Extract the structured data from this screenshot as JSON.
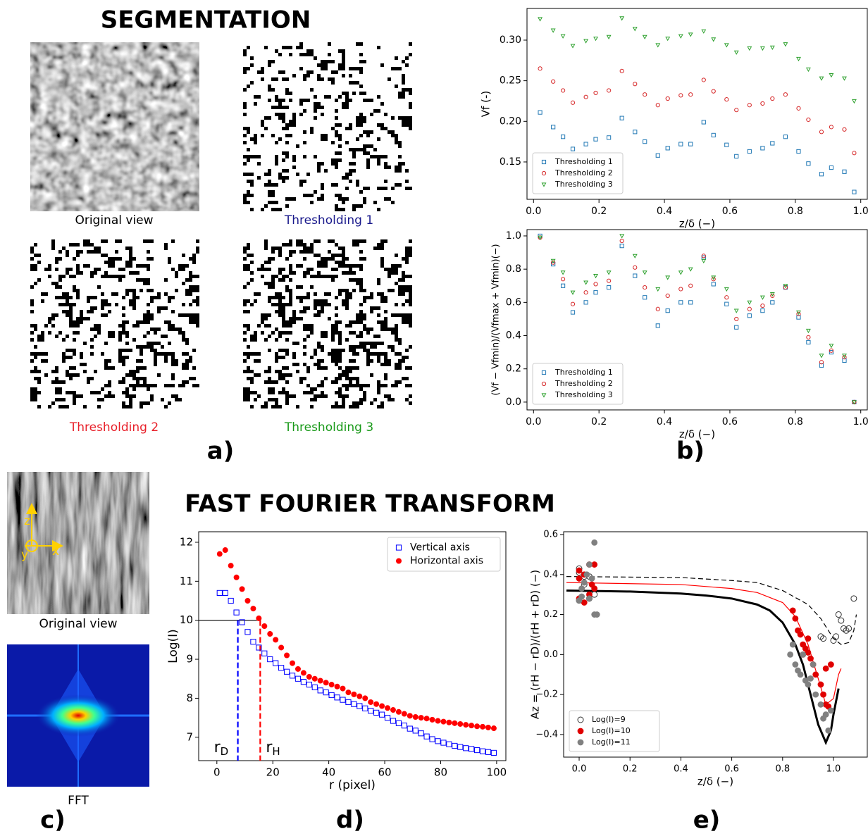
{
  "segmentation": {
    "title": "SEGMENTATION",
    "captions": [
      "Original view",
      "Thresholding 1",
      "Thresholding 2",
      "Thresholding 3"
    ],
    "caption_colors": [
      "#000000",
      "#1a1a8c",
      "#e8202a",
      "#1a9a1a"
    ],
    "panel": "a)"
  },
  "panel_b": "b)",
  "fft": {
    "title": "FAST FOURIER TRANSFORM",
    "captions": [
      "Original view",
      "FFT"
    ],
    "axes": [
      "z",
      "x",
      "y"
    ],
    "panels": [
      "c)",
      "d)",
      "e)"
    ]
  },
  "chart_data": [
    {
      "type": "scatter",
      "ylabel": "Vf (-)",
      "xlabel": "z/δ (−)",
      "xlim": [
        -0.02,
        1.02
      ],
      "ylim": [
        0.104,
        0.339
      ],
      "xticks": [
        {
          "value": 0,
          "label": "0.0"
        },
        0.2,
        0.4,
        0.6,
        0.8,
        {
          "value": 1,
          "label": "1.0"
        }
      ],
      "yticks": [
        0.15,
        {
          "value": 0.2,
          "label": "0.20"
        },
        0.25,
        {
          "value": 0.3,
          "label": "0.30"
        }
      ],
      "legend": "lower left",
      "x": [
        0.02,
        0.06,
        0.09,
        0.12,
        0.16,
        0.19,
        0.23,
        0.27,
        0.31,
        0.34,
        0.38,
        0.41,
        0.45,
        0.48,
        0.52,
        0.55,
        0.59,
        0.62,
        0.66,
        0.7,
        0.73,
        0.77,
        0.81,
        0.84,
        0.88,
        0.91,
        0.95,
        0.98
      ],
      "series": [
        {
          "name": "Thresholding 1",
          "color": "#1f77b4",
          "marker": "square",
          "filled": false,
          "values": [
            0.211,
            0.193,
            0.181,
            0.166,
            0.172,
            0.178,
            0.18,
            0.204,
            0.187,
            0.175,
            0.158,
            0.167,
            0.172,
            0.172,
            0.199,
            0.183,
            0.171,
            0.157,
            0.163,
            0.167,
            0.173,
            0.181,
            0.163,
            0.148,
            0.135,
            0.143,
            0.138,
            0.113
          ]
        },
        {
          "name": "Thresholding 2",
          "color": "#d62728",
          "marker": "circle",
          "filled": false,
          "values": [
            0.265,
            0.249,
            0.238,
            0.223,
            0.23,
            0.235,
            0.238,
            0.262,
            0.246,
            0.233,
            0.22,
            0.228,
            0.232,
            0.233,
            0.251,
            0.237,
            0.227,
            0.214,
            0.22,
            0.222,
            0.228,
            0.233,
            0.216,
            0.202,
            0.187,
            0.193,
            0.19,
            0.161
          ]
        },
        {
          "name": "Thresholding 3",
          "color": "#2ca02c",
          "marker": "triangle",
          "filled": false,
          "values": [
            0.326,
            0.312,
            0.305,
            0.293,
            0.299,
            0.302,
            0.304,
            0.327,
            0.314,
            0.304,
            0.294,
            0.302,
            0.305,
            0.307,
            0.311,
            0.301,
            0.294,
            0.285,
            0.29,
            0.29,
            0.291,
            0.295,
            0.277,
            0.264,
            0.253,
            0.257,
            0.253,
            0.225
          ]
        }
      ]
    },
    {
      "type": "scatter",
      "ylabel": "(Vf − Vfmin)/(Vfmax + Vfmin)(−)",
      "xlabel": "z/δ (−)",
      "xlim": [
        -0.02,
        1.02
      ],
      "ylim": [
        -0.047,
        1.038
      ],
      "xticks": [
        {
          "value": 0,
          "label": "0.0"
        },
        0.2,
        0.4,
        0.6,
        0.8,
        {
          "value": 1,
          "label": "1.0"
        }
      ],
      "yticks": [
        {
          "value": 0,
          "label": "0.0"
        },
        0.2,
        0.4,
        0.6,
        0.8,
        {
          "value": 1,
          "label": "1.0"
        }
      ],
      "legend": "lower left",
      "x": [
        0.02,
        0.06,
        0.09,
        0.12,
        0.16,
        0.19,
        0.23,
        0.27,
        0.31,
        0.34,
        0.38,
        0.41,
        0.45,
        0.48,
        0.52,
        0.55,
        0.59,
        0.62,
        0.66,
        0.7,
        0.73,
        0.77,
        0.81,
        0.84,
        0.88,
        0.91,
        0.95,
        0.98
      ],
      "series": [
        {
          "name": "Thresholding 1",
          "color": "#1f77b4",
          "marker": "square",
          "filled": false,
          "values": [
            1.0,
            0.83,
            0.7,
            0.54,
            0.6,
            0.66,
            0.69,
            0.94,
            0.76,
            0.63,
            0.46,
            0.55,
            0.6,
            0.6,
            0.87,
            0.71,
            0.59,
            0.45,
            0.52,
            0.55,
            0.6,
            0.69,
            0.51,
            0.36,
            0.22,
            0.3,
            0.25,
            0.0
          ]
        },
        {
          "name": "Thresholding 2",
          "color": "#d62728",
          "marker": "circle",
          "filled": false,
          "values": [
            0.99,
            0.84,
            0.74,
            0.59,
            0.66,
            0.71,
            0.73,
            0.97,
            0.81,
            0.69,
            0.56,
            0.64,
            0.68,
            0.7,
            0.88,
            0.74,
            0.63,
            0.5,
            0.56,
            0.58,
            0.64,
            0.69,
            0.53,
            0.39,
            0.24,
            0.31,
            0.27,
            0.0
          ]
        },
        {
          "name": "Thresholding 3",
          "color": "#2ca02c",
          "marker": "triangle",
          "filled": false,
          "values": [
            0.99,
            0.85,
            0.78,
            0.66,
            0.72,
            0.76,
            0.78,
            1.0,
            0.88,
            0.78,
            0.68,
            0.75,
            0.78,
            0.8,
            0.85,
            0.75,
            0.68,
            0.55,
            0.6,
            0.63,
            0.65,
            0.7,
            0.54,
            0.43,
            0.28,
            0.34,
            0.28,
            0.0
          ]
        }
      ]
    },
    {
      "type": "scatter",
      "ylabel": "Log(I)",
      "xlabel": "r (pixel)",
      "xlim": [
        -6.5,
        103.3
      ],
      "ylim": [
        6.4,
        12.27
      ],
      "xticks": [
        0,
        20,
        40,
        60,
        80,
        100
      ],
      "yticks": [
        7,
        8,
        9,
        10,
        11,
        12
      ],
      "legend": "upper right",
      "x": [
        1,
        3,
        5,
        7,
        9,
        11,
        13,
        15,
        17,
        19,
        21,
        23,
        25,
        27,
        29,
        31,
        33,
        35,
        37,
        39,
        41,
        43,
        45,
        47,
        49,
        51,
        53,
        55,
        57,
        59,
        61,
        63,
        65,
        67,
        69,
        71,
        73,
        75,
        77,
        79,
        81,
        83,
        85,
        87,
        89,
        91,
        93,
        95,
        97,
        99
      ],
      "series": [
        {
          "name": "Vertical axis",
          "color": "#0000ff",
          "marker": "square",
          "filled": false,
          "values": [
            10.7,
            10.7,
            10.5,
            10.2,
            9.95,
            9.7,
            9.45,
            9.3,
            9.15,
            9.0,
            8.9,
            8.78,
            8.68,
            8.58,
            8.5,
            8.42,
            8.35,
            8.28,
            8.2,
            8.15,
            8.08,
            8.02,
            7.96,
            7.9,
            7.85,
            7.8,
            7.74,
            7.68,
            7.63,
            7.58,
            7.5,
            7.42,
            7.36,
            7.3,
            7.22,
            7.17,
            7.1,
            7.02,
            6.95,
            6.9,
            6.86,
            6.82,
            6.78,
            6.75,
            6.72,
            6.7,
            6.67,
            6.64,
            6.62,
            6.6
          ]
        },
        {
          "name": "Horizontal axis",
          "color": "#ff0000",
          "marker": "circle",
          "filled": true,
          "values": [
            11.7,
            11.8,
            11.4,
            11.1,
            10.8,
            10.5,
            10.3,
            10.05,
            9.85,
            9.65,
            9.5,
            9.3,
            9.1,
            8.9,
            8.75,
            8.65,
            8.55,
            8.5,
            8.45,
            8.4,
            8.35,
            8.3,
            8.25,
            8.15,
            8.1,
            8.05,
            8.0,
            7.9,
            7.85,
            7.8,
            7.75,
            7.7,
            7.65,
            7.6,
            7.55,
            7.52,
            7.5,
            7.48,
            7.45,
            7.42,
            7.4,
            7.38,
            7.36,
            7.34,
            7.32,
            7.3,
            7.28,
            7.27,
            7.25,
            7.23
          ]
        }
      ],
      "hline": 10,
      "vlines": [
        {
          "text": "r",
          "sub": "D",
          "x": 7.5,
          "color": "#0000ff"
        },
        {
          "text": "r",
          "sub": "H",
          "x": 15.5,
          "color": "#ff0000"
        }
      ]
    },
    {
      "type": "scatter",
      "ylabel": "Az = (rH − rD)/(rH + rD) (−)",
      "xlabel": "z/δ (−)",
      "xlim": [
        -0.061,
        1.133
      ],
      "ylim": [
        -0.513,
        0.614
      ],
      "xticks": [
        {
          "value": 0,
          "label": "0.0"
        },
        0.2,
        0.4,
        0.6,
        0.8,
        {
          "value": 1,
          "label": "1.0"
        }
      ],
      "yticks": [
        {
          "value": -0.4,
          "label": "−0.4"
        },
        {
          "value": -0.2,
          "label": "−0.2"
        },
        {
          "value": 0,
          "label": "0.0"
        },
        0.2,
        0.4,
        0.6
      ],
      "legend": "lower left",
      "series": [
        {
          "name": "Log(I)=9",
          "color": "#333333",
          "marker": "circle",
          "filled": false,
          "x": [
            0.0,
            0.0,
            0.02,
            0.04,
            0.02,
            0.0,
            0.04,
            0.06,
            1.08,
            1.02,
            1.03,
            1.06,
            1.05,
            1.04,
            1.01,
            1.0,
            0.96,
            0.95
          ],
          "values": [
            0.43,
            0.41,
            0.39,
            0.39,
            0.35,
            0.27,
            0.28,
            0.3,
            0.28,
            0.2,
            0.17,
            0.13,
            0.12,
            0.13,
            0.09,
            0.07,
            0.08,
            0.09
          ]
        },
        {
          "name": "Log(I)=10",
          "color": "#e00000",
          "marker": "circle",
          "filled": true,
          "x": [
            0.0,
            0.0,
            0.02,
            0.04,
            0.06,
            0.05,
            0.0,
            0.02,
            0.04,
            0.06,
            0.84,
            0.85,
            0.86,
            0.87,
            0.88,
            0.89,
            0.9,
            0.91,
            0.92,
            0.93,
            0.95,
            0.96,
            0.97,
            0.98,
            0.99,
            0.97,
            0.9,
            0.88
          ],
          "values": [
            0.42,
            0.38,
            0.4,
            0.45,
            0.45,
            0.35,
            0.28,
            0.26,
            0.3,
            0.33,
            0.22,
            0.18,
            0.12,
            0.1,
            0.05,
            0.03,
            0.01,
            -0.02,
            -0.05,
            -0.1,
            -0.15,
            -0.2,
            -0.25,
            -0.26,
            -0.05,
            -0.07,
            0.08,
            0.0
          ]
        },
        {
          "name": "Log(I)=11",
          "color": "#808080",
          "marker": "circle",
          "filled": true,
          "x": [
            0.0,
            0.01,
            0.02,
            0.03,
            0.04,
            0.05,
            0.06,
            0.06,
            0.07,
            0.04,
            0.01,
            0.83,
            0.84,
            0.85,
            0.86,
            0.87,
            0.88,
            0.89,
            0.9,
            0.91,
            0.93,
            0.95,
            0.97,
            0.98,
            0.96,
            0.99,
            0.92
          ],
          "values": [
            0.27,
            0.33,
            0.36,
            0.4,
            0.45,
            0.38,
            0.56,
            0.2,
            0.2,
            0.28,
            0.29,
            0.0,
            0.05,
            -0.05,
            -0.08,
            -0.1,
            0.0,
            -0.13,
            -0.15,
            -0.12,
            -0.2,
            -0.25,
            -0.3,
            -0.38,
            -0.32,
            -0.28,
            -0.05
          ]
        }
      ],
      "curves": [
        {
          "color": "#000000",
          "width": 3,
          "dashed": false,
          "x": [
            -0.05,
            0.2,
            0.4,
            0.5,
            0.6,
            0.7,
            0.75,
            0.8,
            0.85,
            0.88,
            0.91,
            0.94,
            0.97,
            0.99,
            1.0,
            1.02
          ],
          "y": [
            0.32,
            0.315,
            0.305,
            0.295,
            0.28,
            0.25,
            0.22,
            0.16,
            0.05,
            -0.05,
            -0.2,
            -0.35,
            -0.44,
            -0.38,
            -0.3,
            -0.17
          ]
        },
        {
          "color": "#ff0000",
          "width": 1.2,
          "dashed": false,
          "x": [
            -0.05,
            0.4,
            0.6,
            0.7,
            0.8,
            0.85,
            0.9,
            0.94,
            0.97,
            1.0,
            1.02,
            1.03
          ],
          "y": [
            0.36,
            0.35,
            0.33,
            0.31,
            0.26,
            0.19,
            0.05,
            -0.12,
            -0.25,
            -0.22,
            -0.1,
            -0.07
          ]
        },
        {
          "color": "#000000",
          "width": 1.2,
          "dashed": true,
          "x": [
            -0.05,
            0.4,
            0.6,
            0.7,
            0.8,
            0.9,
            0.95,
            0.98,
            1.0,
            1.03,
            1.06,
            1.08,
            1.09
          ],
          "y": [
            0.39,
            0.385,
            0.37,
            0.36,
            0.32,
            0.25,
            0.18,
            0.12,
            0.08,
            0.05,
            0.06,
            0.12,
            0.2
          ]
        }
      ]
    }
  ]
}
